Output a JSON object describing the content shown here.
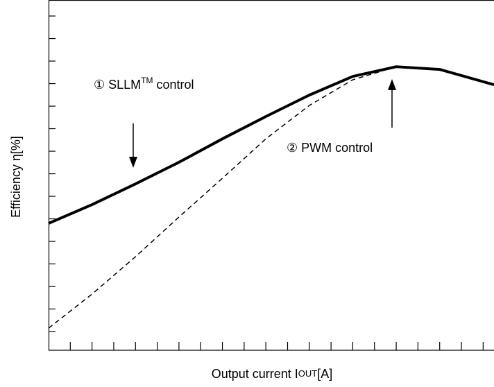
{
  "chart_data": {
    "type": "line",
    "y_label": "Efficiency η[%]",
    "x_label": {
      "main": "Output current I",
      "subscript": "OUT",
      "unit": "[A]"
    },
    "annotations": [
      {
        "prefix": "① SLLM",
        "superscript": "TM",
        "suffix": " control"
      },
      {
        "text": "② PWM control"
      }
    ],
    "x": [
      0,
      2,
      4,
      6,
      8,
      10,
      12,
      14,
      16,
      18,
      20.5
    ],
    "series": [
      {
        "color": "#000000",
        "dash": false,
        "values": [
          5.8,
          6.63,
          7.55,
          8.51,
          9.55,
          10.54,
          11.49,
          12.32,
          12.75,
          12.63,
          11.95
        ]
      },
      {
        "color": "#000000",
        "dash": true,
        "values": [
          1.15,
          2.66,
          4.32,
          6.08,
          7.8,
          9.55,
          11.03,
          12.17,
          12.75,
          12.63,
          11.95
        ]
      }
    ],
    "xlim": [
      0,
      20.5
    ],
    "ylim": [
      0.17,
      15.71
    ],
    "xticks": [
      1,
      2,
      3,
      4,
      5,
      6,
      7,
      8,
      9,
      10,
      11,
      12,
      13,
      14,
      15,
      16,
      17,
      18,
      19,
      20
    ],
    "yticks": [
      1,
      2,
      3,
      4,
      5,
      6,
      7,
      8,
      9,
      10,
      11,
      12,
      13,
      14,
      15
    ]
  }
}
